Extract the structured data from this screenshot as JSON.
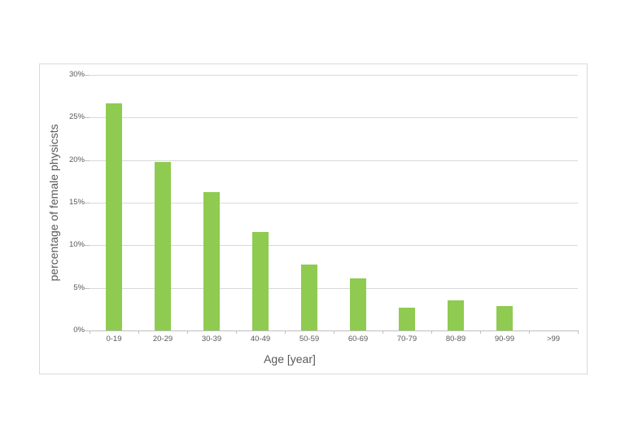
{
  "chart_data": {
    "type": "bar",
    "title": "",
    "categories": [
      "0-19",
      "20-29",
      "30-39",
      "40-49",
      "50-59",
      "60-69",
      "70-79",
      "80-89",
      "90-99",
      ">99"
    ],
    "values": [
      26.7,
      19.8,
      16.2,
      11.6,
      7.7,
      6.1,
      2.7,
      3.5,
      2.9,
      0
    ],
    "xlabel": "Age [year]",
    "ylabel": "percentage of female physicsts",
    "ylim": [
      0,
      30
    ],
    "ytick_step": 5,
    "ytick_labels": [
      "0%",
      "5%",
      "10%",
      "15%",
      "20%",
      "25%",
      "30%"
    ],
    "grid": true,
    "legend": false,
    "bar_color": "#8ecb50",
    "gridline_color": "#d9d9d9",
    "axis_line_color": "#bfbfbf",
    "text_color": "#595959",
    "frame_border_color": "#d9d9d9",
    "background_color": "#ffffff"
  }
}
